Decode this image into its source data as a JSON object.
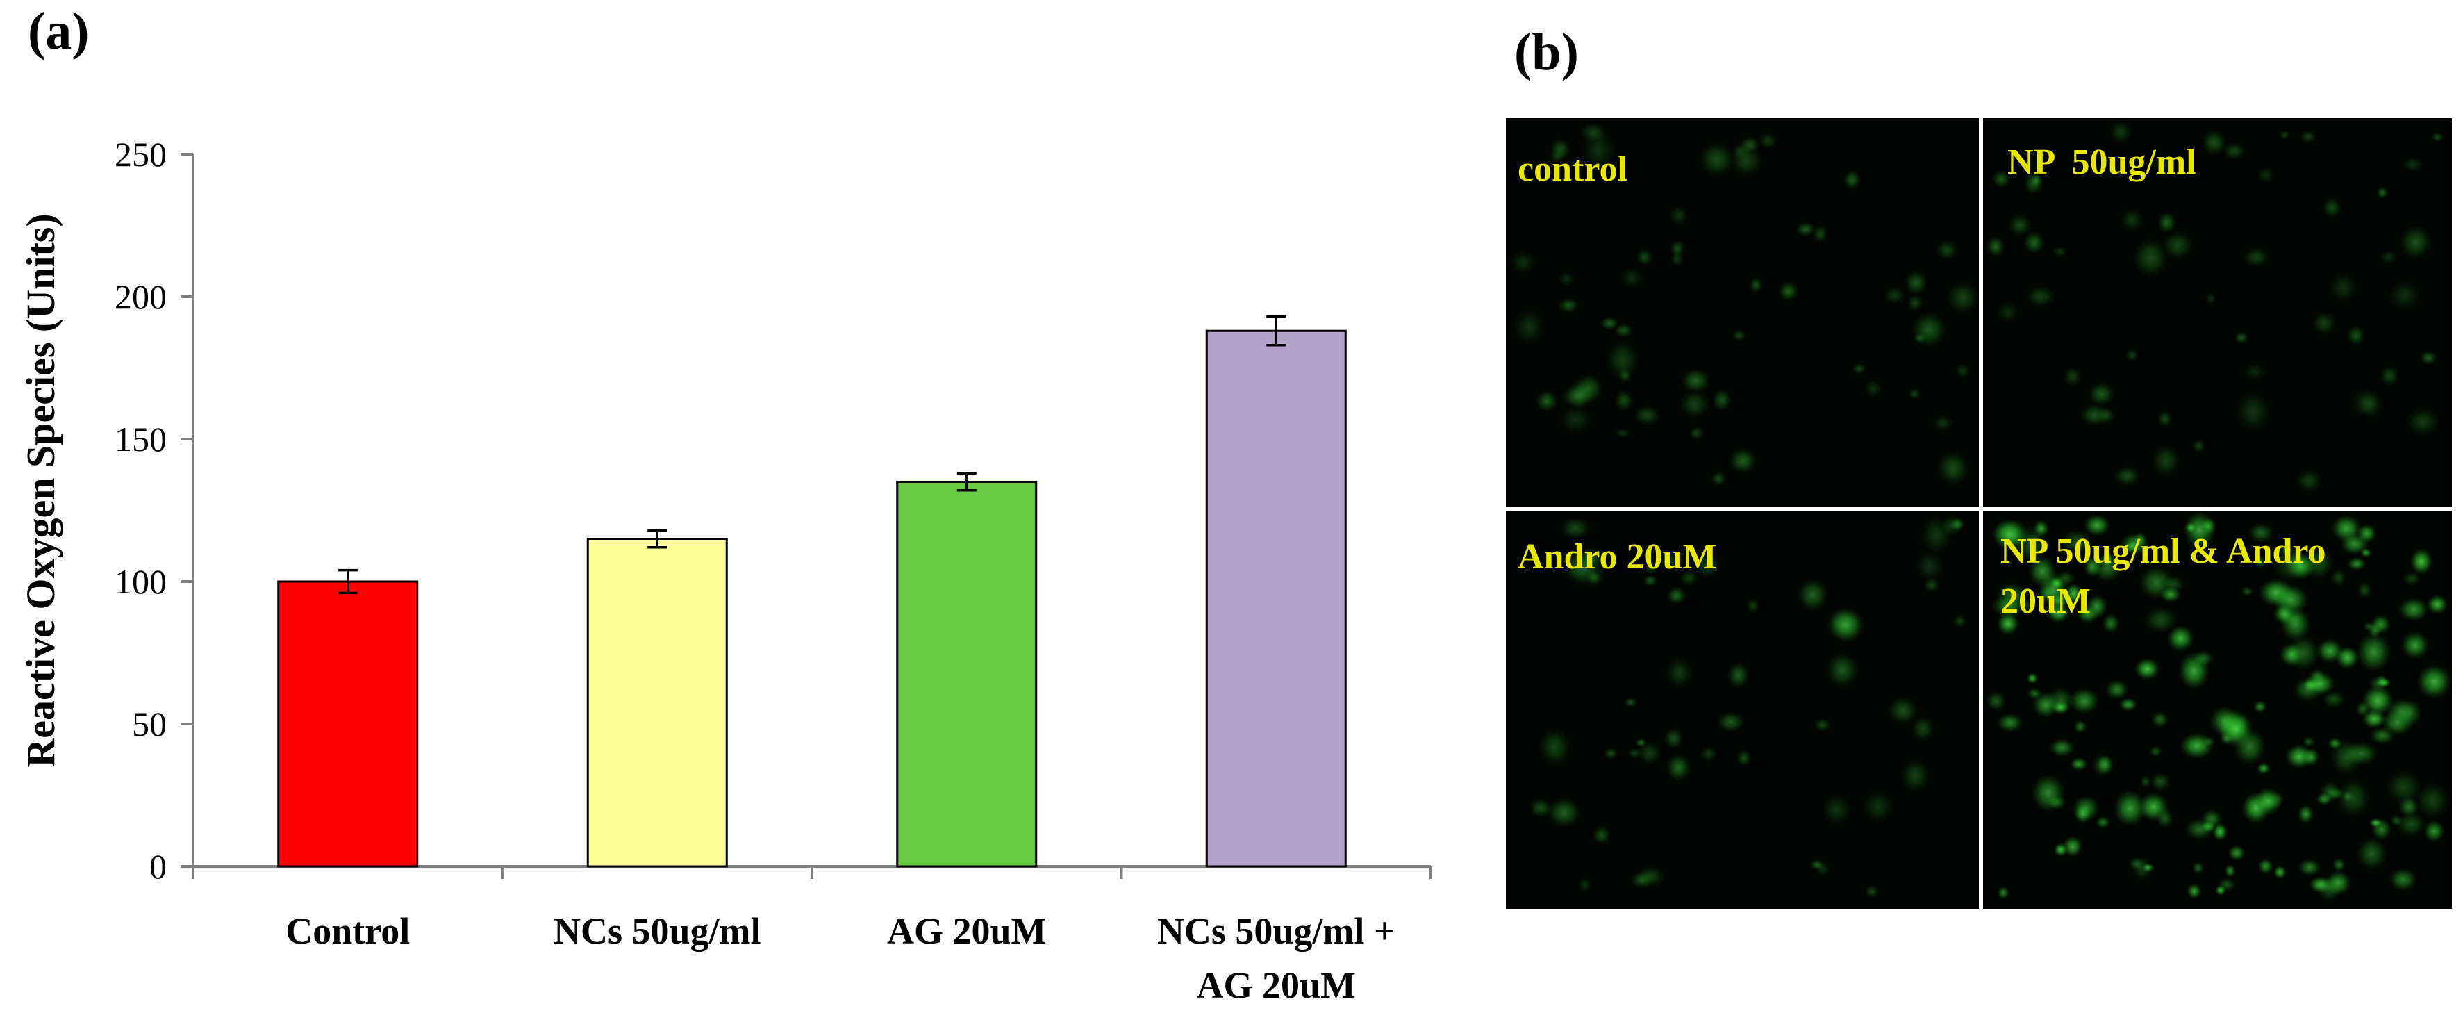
{
  "panel_a_label": "(a)",
  "panel_b_label": "(b)",
  "chart_data": {
    "type": "bar",
    "title": "",
    "xlabel": "",
    "ylabel": "Reactive Oxygen Species (Units)",
    "ylim": [
      0,
      250
    ],
    "yticks": [
      0,
      50,
      100,
      150,
      200,
      250
    ],
    "categories": [
      [
        "Control"
      ],
      [
        "NCs 50ug/ml"
      ],
      [
        "AG 20uM"
      ],
      [
        "NCs 50ug/ml +",
        "AG 20uM"
      ]
    ],
    "values": [
      100,
      115,
      135,
      188
    ],
    "errors": [
      4,
      3,
      3,
      5
    ],
    "colors": [
      "#ff0000",
      "#ffff99",
      "#66cc44",
      "#b3a2c7"
    ],
    "grid": false
  },
  "micrographs": [
    {
      "label_lines": [
        "control"
      ]
    },
    {
      "label_lines": [
        "NP  50ug/ml"
      ]
    },
    {
      "label_lines": [
        "Andro 20uM"
      ]
    },
    {
      "label_lines": [
        "NP 50ug/ml & Andro",
        "20uM"
      ]
    }
  ],
  "colors": {
    "micrograph_bg": "#020402",
    "cell_green": "#2ecc2e",
    "label_yellow": "#e8e800",
    "divider": "#ffffff"
  }
}
